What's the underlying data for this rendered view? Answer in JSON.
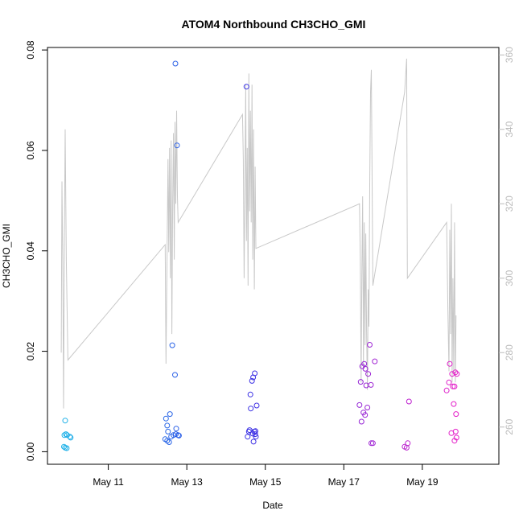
{
  "chart_data": {
    "type": "scatter",
    "title": "ATOM4 Northbound CH3CHO_GMI",
    "xlabel": "Date",
    "ylabel": "CH3CHO_GMI",
    "x_ticks": [
      "May 11",
      "May 13",
      "May 15",
      "May 17",
      "May 19"
    ],
    "x_tick_days": [
      11,
      13,
      15,
      17,
      19
    ],
    "xlim_days": [
      9.45,
      20.95
    ],
    "ylim": [
      -0.0025,
      0.0805
    ],
    "y_ticks": [
      0.0,
      0.02,
      0.04,
      0.06,
      0.08
    ],
    "y_tick_labels": [
      "0.00",
      "0.02",
      "0.04",
      "0.06",
      "0.08"
    ],
    "y2lim": [
      250,
      362
    ],
    "y2_ticks": [
      260,
      280,
      300,
      320,
      340,
      360
    ],
    "grid": false,
    "colors": {
      "background_line": "#c8c8c8",
      "right_axis": "#bbbbbb",
      "point_gradient": [
        "#1eb4e8",
        "#3232e6",
        "#e61ec8"
      ]
    },
    "series": [
      {
        "values": [
          [
            9.88,
            0.0033
          ],
          [
            9.9,
            0.0062
          ],
          [
            9.92,
            0.0035
          ],
          [
            9.95,
            0.0033
          ],
          [
            9.87,
            0.001
          ],
          [
            9.9,
            0.0008
          ],
          [
            9.94,
            0.0007
          ],
          [
            10.02,
            0.003
          ],
          [
            10.04,
            0.0028
          ],
          [
            12.47,
            0.0066
          ],
          [
            12.5,
            0.0052
          ],
          [
            12.52,
            0.004
          ],
          [
            12.45,
            0.0025
          ],
          [
            12.5,
            0.0022
          ],
          [
            12.55,
            0.0019
          ],
          [
            12.57,
            0.0075
          ],
          [
            12.6,
            0.003
          ],
          [
            12.63,
            0.0212
          ],
          [
            12.66,
            0.0033
          ],
          [
            12.7,
            0.0153
          ],
          [
            12.72,
            0.0035
          ],
          [
            12.73,
            0.0046
          ],
          [
            12.71,
            0.0773
          ],
          [
            12.75,
            0.061
          ],
          [
            12.78,
            0.0033
          ],
          [
            12.8,
            0.0032
          ],
          [
            14.52,
            0.0727
          ],
          [
            14.55,
            0.003
          ],
          [
            14.58,
            0.004
          ],
          [
            14.6,
            0.0043
          ],
          [
            14.62,
            0.0114
          ],
          [
            14.63,
            0.0086
          ],
          [
            14.66,
            0.0141
          ],
          [
            14.68,
            0.0036
          ],
          [
            14.69,
            0.0148
          ],
          [
            14.7,
            0.002
          ],
          [
            14.72,
            0.004
          ],
          [
            14.73,
            0.0156
          ],
          [
            14.74,
            0.0035
          ],
          [
            14.76,
            0.003
          ],
          [
            14.78,
            0.0092
          ],
          [
            14.75,
            0.0041
          ],
          [
            17.4,
            0.0093
          ],
          [
            17.43,
            0.0139
          ],
          [
            17.45,
            0.006
          ],
          [
            17.47,
            0.017
          ],
          [
            17.5,
            0.0078
          ],
          [
            17.52,
            0.0175
          ],
          [
            17.54,
            0.0073
          ],
          [
            17.55,
            0.0165
          ],
          [
            17.57,
            0.0132
          ],
          [
            17.6,
            0.0088
          ],
          [
            17.62,
            0.0155
          ],
          [
            17.66,
            0.0213
          ],
          [
            17.69,
            0.0133
          ],
          [
            17.7,
            0.0017
          ],
          [
            17.74,
            0.0017
          ],
          [
            17.79,
            0.018
          ],
          [
            18.55,
            0.001
          ],
          [
            18.6,
            0.0008
          ],
          [
            18.63,
            0.0017
          ],
          [
            18.66,
            0.01
          ],
          [
            19.62,
            0.0122
          ],
          [
            19.68,
            0.0138
          ],
          [
            19.7,
            0.0175
          ],
          [
            19.74,
            0.0037
          ],
          [
            19.76,
            0.0155
          ],
          [
            19.78,
            0.013
          ],
          [
            19.8,
            0.0095
          ],
          [
            19.82,
            0.0022
          ],
          [
            19.82,
            0.013
          ],
          [
            19.84,
            0.0158
          ],
          [
            19.85,
            0.004
          ],
          [
            19.86,
            0.0075
          ],
          [
            19.87,
            0.0028
          ],
          [
            19.88,
            0.0155
          ]
        ]
      },
      {
        "axis": "right",
        "values": [
          [
            9.8,
            280
          ],
          [
            9.82,
            326
          ],
          [
            9.84,
            305
          ],
          [
            9.86,
            265
          ],
          [
            9.88,
            310
          ],
          [
            9.9,
            340
          ],
          [
            9.93,
            305
          ],
          [
            9.97,
            278
          ],
          [
            12.45,
            309
          ],
          [
            12.47,
            277
          ],
          [
            12.52,
            332
          ],
          [
            12.54,
            307
          ],
          [
            12.56,
            335
          ],
          [
            12.58,
            300
          ],
          [
            12.6,
            337
          ],
          [
            12.62,
            285
          ],
          [
            12.64,
            320
          ],
          [
            12.66,
            339
          ],
          [
            12.68,
            305
          ],
          [
            12.7,
            342
          ],
          [
            12.72,
            320
          ],
          [
            12.74,
            345
          ],
          [
            12.76,
            322
          ],
          [
            12.78,
            315
          ],
          [
            14.42,
            344
          ],
          [
            14.44,
            332
          ],
          [
            14.46,
            300
          ],
          [
            14.48,
            325
          ],
          [
            14.5,
            352
          ],
          [
            14.52,
            310
          ],
          [
            14.54,
            335
          ],
          [
            14.56,
            298
          ],
          [
            14.58,
            355
          ],
          [
            14.6,
            318
          ],
          [
            14.62,
            345
          ],
          [
            14.64,
            315
          ],
          [
            14.66,
            352
          ],
          [
            14.68,
            305
          ],
          [
            14.7,
            340
          ],
          [
            14.72,
            297
          ],
          [
            14.74,
            330
          ],
          [
            14.76,
            308
          ],
          [
            17.4,
            320
          ],
          [
            17.42,
            305
          ],
          [
            17.44,
            272
          ],
          [
            17.46,
            300
          ],
          [
            17.48,
            322
          ],
          [
            17.5,
            276
          ],
          [
            17.52,
            315
          ],
          [
            17.54,
            282
          ],
          [
            17.56,
            312
          ],
          [
            17.58,
            286
          ],
          [
            17.6,
            270
          ],
          [
            17.62,
            297
          ],
          [
            17.64,
            287
          ],
          [
            17.66,
            325
          ],
          [
            17.68,
            350
          ],
          [
            17.7,
            356
          ],
          [
            17.74,
            298
          ],
          [
            18.55,
            350
          ],
          [
            18.6,
            359
          ],
          [
            18.62,
            300
          ],
          [
            19.62,
            315
          ],
          [
            19.65,
            292
          ],
          [
            19.68,
            275
          ],
          [
            19.7,
            313
          ],
          [
            19.72,
            285
          ],
          [
            19.74,
            320
          ],
          [
            19.76,
            272
          ],
          [
            19.78,
            300
          ],
          [
            19.8,
            275
          ],
          [
            19.82,
            315
          ],
          [
            19.84,
            272
          ],
          [
            19.86,
            290
          ]
        ]
      }
    ]
  }
}
